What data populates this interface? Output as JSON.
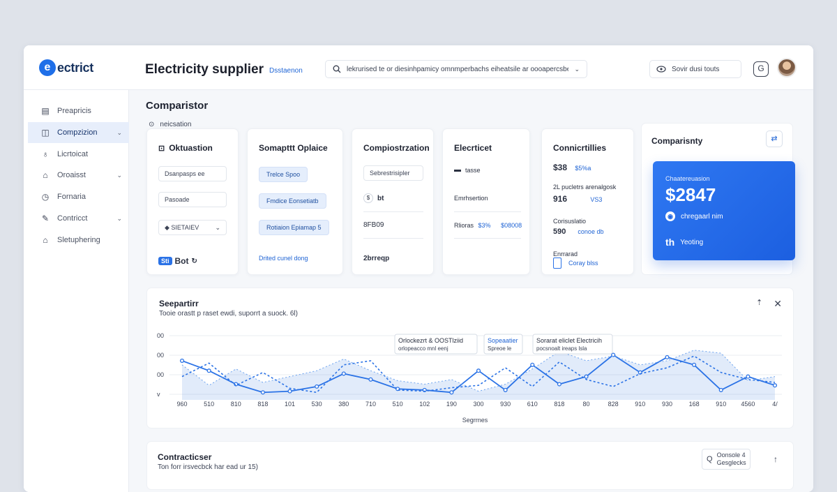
{
  "app": {
    "logo_glyph": "e",
    "logo_text": "ectrict",
    "title": "Electricity supplier",
    "subtitle": "Dsstaenon",
    "search_text": "lekrurised te or diesinhpamicy omnmperbachs eiheatsile ar oooapercsbe",
    "pill_text": "Sovir dusi touts",
    "accent": "#1f6fe8"
  },
  "sidebar": {
    "items": [
      {
        "label": "Preapricis",
        "icon": "document-icon"
      },
      {
        "label": "Compzizion",
        "icon": "compare-icon"
      },
      {
        "label": "Licrtoicat",
        "icon": "bulb-icon"
      },
      {
        "label": "Oroaisst",
        "icon": "tag-icon"
      },
      {
        "label": "Fornaria",
        "icon": "clock-icon"
      },
      {
        "label": "Contricct",
        "icon": "pen-icon"
      },
      {
        "label": "Sletuphering",
        "icon": "home-icon"
      }
    ]
  },
  "main": {
    "title": "Comparistor",
    "note_icon": "⊙",
    "note": "neicsation"
  },
  "cards": {
    "c1": {
      "title": "Oktuastion",
      "fields": [
        "Dsanpasps ee",
        "Pasoade",
        "SIETAIEV"
      ],
      "badge": "Sti",
      "footer": "Bot"
    },
    "c2": {
      "title": "Somapttt Oplaice",
      "chips": [
        "Trelce Spoo",
        "Fmdice Eonsetiatb",
        "Rotiaion Epiamap 5"
      ],
      "footer": "Drited cunel dong"
    },
    "c3": {
      "title": "Compiostrzation",
      "field": "Sebrestrisipler",
      "val1": "bt",
      "val2": "8FB09",
      "val3": "2brreqp"
    },
    "c4": {
      "title": "Elecrticet",
      "line1": "tasse",
      "line2": "Emrhsertion",
      "line3a": "Rlioras",
      "line3b": "$3%",
      "line3c": "$08008"
    },
    "c5": {
      "title": "Connicrtillies",
      "v1": "$38",
      "v1b": "$5%a",
      "t1": "2L pucletrs arenalgosk",
      "v2": "916",
      "v2b": "VS3",
      "t2": "Corisuslatio",
      "v3": "590",
      "v3b": "conoe db",
      "t3": "Enrrarad",
      "t3b": "Coray blss"
    }
  },
  "promo": {
    "title": "Comparisnty",
    "label": "Chaatereuasion",
    "price": "$2847",
    "row1": "chregaarl nim",
    "row2_glyph": "th",
    "row2": "Yeoting"
  },
  "chart": {
    "title": "Seepartirr",
    "subtitle": "Tooie orastt p raset ewdi, suporrt a suock. 6l)",
    "xlabel": "Segrrnes",
    "legend": [
      {
        "line1": "Orlockezrt & OOSTlziid",
        "line2": "orlopeacco mnl eenj"
      },
      {
        "line1": "Sopeaatier",
        "line2": "Spreoe le"
      },
      {
        "line1": "Sorarat eliclet Electricih",
        "line2": "pocsnoalt ireaps lsla"
      }
    ]
  },
  "chart_data": {
    "type": "line",
    "title": "",
    "xlabel": "Segrrnes",
    "ylabel": "",
    "x_tick_labels": [
      "960",
      "510",
      "810",
      "818",
      "101",
      "530",
      "380",
      "710",
      "510",
      "102",
      "190",
      "300",
      "930",
      "610",
      "818",
      "80",
      "828",
      "910",
      "930",
      "168",
      "910",
      "4560",
      "4/"
    ],
    "y_tick_labels": [
      "00",
      "00",
      "00",
      "v"
    ],
    "grid": true,
    "colors": {
      "primary": "#2a72e6",
      "secondary": "#6aa2ef"
    },
    "series": [
      {
        "values": [
          0.62,
          0.45,
          0.22,
          0.08,
          0.1,
          0.18,
          0.4,
          0.3,
          0.14,
          0.12,
          0.08,
          0.45,
          0.12,
          0.55,
          0.22,
          0.35,
          0.72,
          0.42,
          0.68,
          0.55,
          0.12,
          0.35,
          0.2
        ]
      },
      {
        "values": [
          0.35,
          0.58,
          0.2,
          0.42,
          0.15,
          0.08,
          0.55,
          0.62,
          0.12,
          0.1,
          0.16,
          0.2,
          0.5,
          0.18,
          0.6,
          0.3,
          0.18,
          0.4,
          0.5,
          0.7,
          0.42,
          0.3,
          0.25
        ]
      },
      {
        "values": [
          0.55,
          0.2,
          0.48,
          0.25,
          0.35,
          0.45,
          0.65,
          0.45,
          0.28,
          0.22,
          0.3,
          0.1,
          0.22,
          0.48,
          0.78,
          0.62,
          0.7,
          0.55,
          0.62,
          0.8,
          0.75,
          0.28,
          0.35
        ]
      }
    ]
  },
  "bottom": {
    "title": "Contracticser",
    "subtitle": "Ton forr irsvecbck har ead ur 15)",
    "tool_label": "Oonsole 4",
    "tool_sub": "Gesglecks",
    "tool_glyph": "Q"
  }
}
